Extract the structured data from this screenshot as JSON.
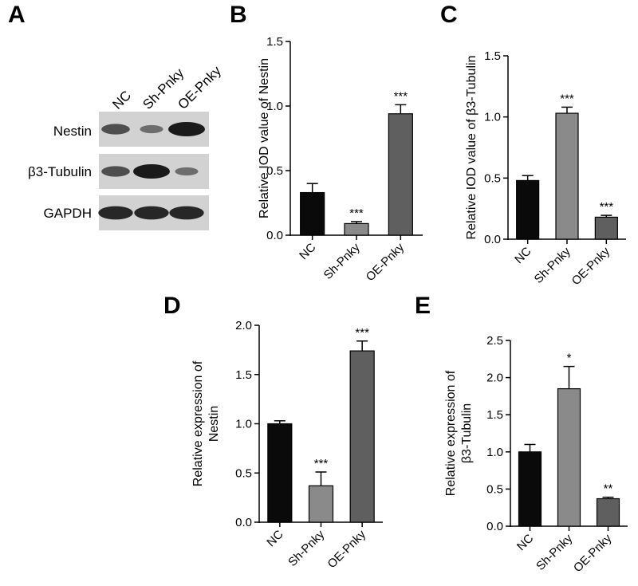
{
  "colors": {
    "nc": "#0a0a0a",
    "sh": "#8a8a8a",
    "oe": "#5f5f5f",
    "blot_bg": "#d2d2d2",
    "band": "#1a1a1a"
  },
  "chart_data": [
    {
      "panel": "A",
      "type": "western-blot",
      "lanes": [
        "NC",
        "Sh-Pnky",
        "OE-Pnky"
      ],
      "rows": [
        {
          "label": "Nestin",
          "intensity": [
            0.6,
            0.35,
            1.0
          ]
        },
        {
          "label": "β3-Tubulin",
          "intensity": [
            0.6,
            1.0,
            0.35
          ]
        },
        {
          "label": "GAPDH",
          "intensity": [
            0.9,
            0.9,
            0.9
          ]
        }
      ]
    },
    {
      "panel": "B",
      "type": "bar",
      "categories": [
        "NC",
        "Sh-Pnky",
        "OE-Pnky"
      ],
      "values": [
        0.33,
        0.09,
        0.94
      ],
      "errors": [
        0.07,
        0.015,
        0.07
      ],
      "significance": [
        "",
        "***",
        "***"
      ],
      "ylabel": "Relative IOD value of Nestin",
      "ylim": [
        0,
        1.5
      ],
      "yticks": [
        "0.0",
        "0.5",
        "1.0",
        "1.5"
      ]
    },
    {
      "panel": "C",
      "type": "bar",
      "categories": [
        "NC",
        "Sh-Pnky",
        "OE-Pnky"
      ],
      "values": [
        0.48,
        1.03,
        0.18
      ],
      "errors": [
        0.04,
        0.05,
        0.015
      ],
      "significance": [
        "",
        "***",
        "***"
      ],
      "ylabel": "Relative IOD value of β3-Tubulin",
      "ylim": [
        0,
        1.5
      ],
      "yticks": [
        "0.0",
        "0.5",
        "1.0",
        "1.5"
      ]
    },
    {
      "panel": "D",
      "type": "bar",
      "categories": [
        "NC",
        "Sh-Pnky",
        "OE-Pnky"
      ],
      "values": [
        1.0,
        0.37,
        1.74
      ],
      "errors": [
        0.03,
        0.14,
        0.1
      ],
      "significance": [
        "",
        "***",
        "***"
      ],
      "ylabel": "Relative expression of Nestin",
      "ylabel_lines": [
        "Relative expression of",
        "Nestin"
      ],
      "ylim": [
        0,
        2.0
      ],
      "yticks": [
        "0.0",
        "0.5",
        "1.0",
        "1.5",
        "2.0"
      ]
    },
    {
      "panel": "E",
      "type": "bar",
      "categories": [
        "NC",
        "Sh-Pnky",
        "OE-Pnky"
      ],
      "values": [
        1.0,
        1.85,
        0.37
      ],
      "errors": [
        0.1,
        0.3,
        0.02
      ],
      "significance": [
        "",
        "*",
        "**"
      ],
      "ylabel": "Relative expression of β3-Tubulin",
      "ylabel_lines": [
        "Relative expression of",
        "β3-Tubulin"
      ],
      "ylim": [
        0,
        2.5
      ],
      "yticks": [
        "0.0",
        "0.5",
        "1.0",
        "1.5",
        "2.0",
        "2.5"
      ]
    }
  ]
}
